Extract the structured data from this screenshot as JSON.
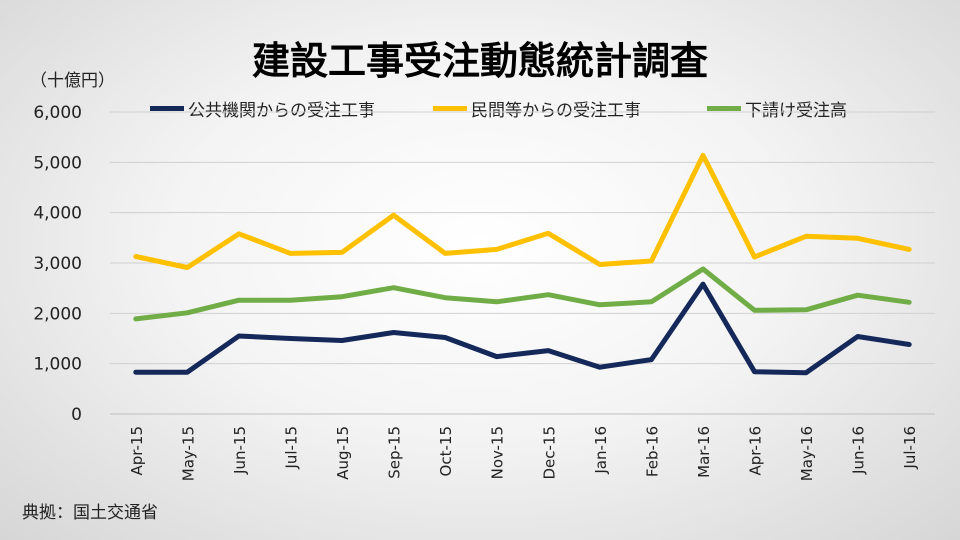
{
  "header": {
    "title": "建設工事受注動態統計調査",
    "unit": "（十億円）"
  },
  "footer": {
    "source": "典拠：国土交通省"
  },
  "chart_data": {
    "type": "line",
    "title": "建設工事受注動態統計調査",
    "ylabel": "（十億円）",
    "xlabel": "",
    "ylim": [
      0,
      6000
    ],
    "yticks": [
      "0",
      "1,000",
      "2,000",
      "3,000",
      "4,000",
      "5,000",
      "6,000"
    ],
    "grid": true,
    "legend_position": "top",
    "categories": [
      "Apr-15",
      "May-15",
      "Jun-15",
      "Jul-15",
      "Aug-15",
      "Sep-15",
      "Oct-15",
      "Nov-15",
      "Dec-15",
      "Jan-16",
      "Feb-16",
      "Mar-16",
      "Apr-16",
      "May-16",
      "Jun-16",
      "Jul-16"
    ],
    "series": [
      {
        "name": "公共機関からの受注工事",
        "color": "#14285a",
        "values": [
          830,
          830,
          1550,
          1500,
          1460,
          1620,
          1520,
          1140,
          1260,
          930,
          1080,
          2580,
          840,
          820,
          1540,
          1380
        ]
      },
      {
        "name": "民間等からの受注工事",
        "color": "#ffc000",
        "values": [
          3130,
          2910,
          3580,
          3190,
          3210,
          3950,
          3190,
          3270,
          3590,
          2970,
          3040,
          5140,
          3120,
          3530,
          3490,
          3270
        ]
      },
      {
        "name": "下請け受注高",
        "color": "#70ad47",
        "values": [
          1890,
          2010,
          2260,
          2260,
          2330,
          2510,
          2310,
          2230,
          2370,
          2170,
          2230,
          2880,
          2060,
          2070,
          2360,
          2220
        ]
      }
    ]
  }
}
